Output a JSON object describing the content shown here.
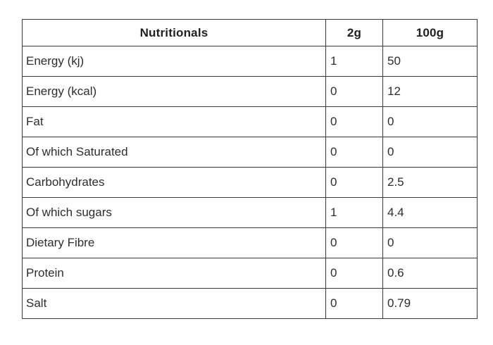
{
  "table": {
    "headers": {
      "label": "Nutritionals",
      "per_2g": "2g",
      "per_100g": "100g"
    },
    "rows": [
      {
        "label": "Energy (kj)",
        "per_2g": "1",
        "per_100g": "50"
      },
      {
        "label": "Energy (kcal)",
        "per_2g": "0",
        "per_100g": "12"
      },
      {
        "label": "Fat",
        "per_2g": "0",
        "per_100g": "0"
      },
      {
        "label": "Of which Saturated",
        "per_2g": "0",
        "per_100g": "0"
      },
      {
        "label": "Carbohydrates",
        "per_2g": "0",
        "per_100g": "2.5"
      },
      {
        "label": "Of which sugars",
        "per_2g": "1",
        "per_100g": "4.4"
      },
      {
        "label": "Dietary Fibre",
        "per_2g": "0",
        "per_100g": "0"
      },
      {
        "label": "Protein",
        "per_2g": "0",
        "per_100g": "0.6"
      },
      {
        "label": "Salt",
        "per_2g": "0",
        "per_100g": "0.79"
      }
    ],
    "colors": {
      "border": "#3a3a3a",
      "text": "#2d2d2d",
      "background": "#ffffff"
    }
  },
  "chart_data": {
    "type": "table",
    "title": "Nutritionals",
    "columns": [
      "Nutritionals",
      "2g",
      "100g"
    ],
    "rows": [
      [
        "Energy (kj)",
        1,
        50
      ],
      [
        "Energy (kcal)",
        0,
        12
      ],
      [
        "Fat",
        0,
        0
      ],
      [
        "Of which Saturated",
        0,
        0
      ],
      [
        "Carbohydrates",
        0,
        2.5
      ],
      [
        "Of which sugars",
        1,
        4.4
      ],
      [
        "Dietary Fibre",
        0,
        0
      ],
      [
        "Protein",
        0,
        0.6
      ],
      [
        "Salt",
        0,
        0.79
      ]
    ]
  }
}
